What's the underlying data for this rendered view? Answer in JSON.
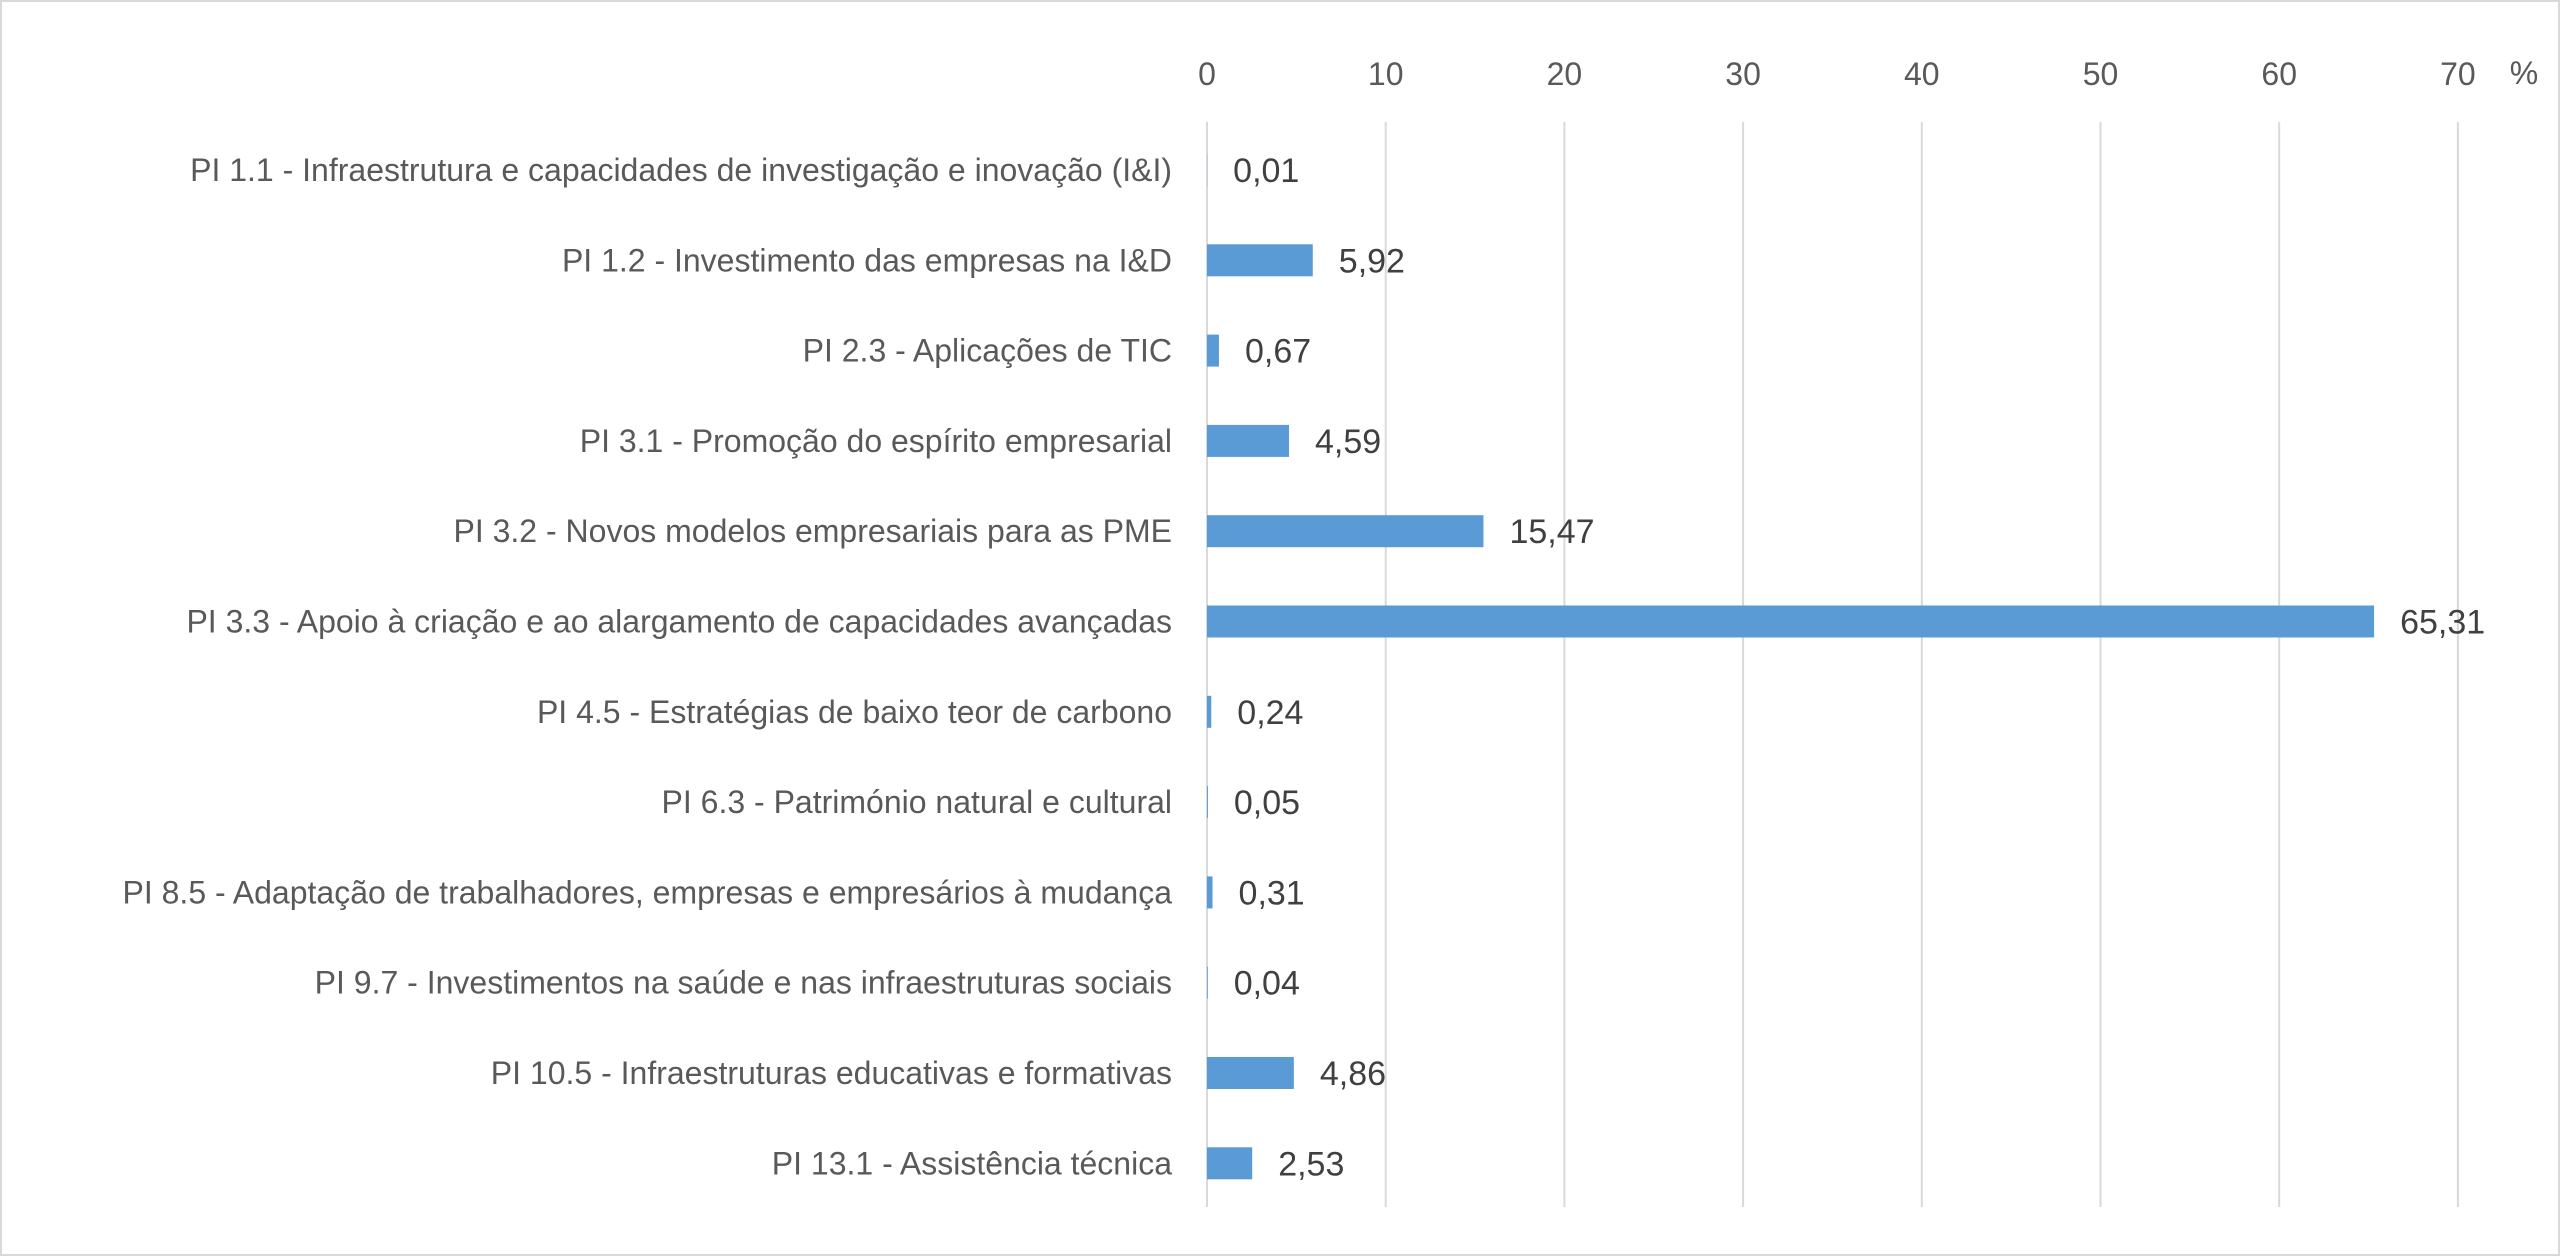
{
  "chart_data": {
    "type": "bar",
    "orientation": "horizontal",
    "categories": [
      "PI 1.1 - Infraestrutura e capacidades de investigação e inovação (I&I)",
      "PI 1.2 - Investimento das empresas na I&D",
      "PI 2.3 - Aplicações de TIC",
      "PI 3.1 - Promoção do espírito empresarial",
      "PI 3.2 - Novos modelos empresariais para as PME",
      "PI 3.3 - Apoio à criação e ao alargamento de capacidades avançadas",
      "PI 4.5 - Estratégias de baixo teor de carbono",
      "PI 6.3 - Património natural e cultural",
      "PI 8.5 - Adaptação de trabalhadores, empresas e empresários à mudança",
      "PI 9.7 - Investimentos na saúde e nas infraestruturas sociais",
      "PI 10.5 - Infraestruturas educativas e formativas",
      "PI 13.1 - Assistência técnica"
    ],
    "values": [
      0.01,
      5.92,
      0.67,
      4.59,
      15.47,
      65.31,
      0.24,
      0.05,
      0.31,
      0.04,
      4.86,
      2.53
    ],
    "data_labels": [
      "0,01",
      "5,92",
      "0,67",
      "4,59",
      "15,47",
      "65,31",
      "0,24",
      "0,05",
      "0,31",
      "0,04",
      "4,86",
      "2,53"
    ],
    "x_ticks": [
      0,
      10,
      20,
      30,
      40,
      50,
      60,
      70
    ],
    "x_tick_labels": [
      "0",
      "10",
      "20",
      "30",
      "40",
      "50",
      "60",
      "70"
    ],
    "x_unit": "%",
    "xlim": [
      0,
      70
    ],
    "x_axis_position": "top",
    "grid": "vertical",
    "legend": "none",
    "bar_color": "#5b9bd5"
  }
}
